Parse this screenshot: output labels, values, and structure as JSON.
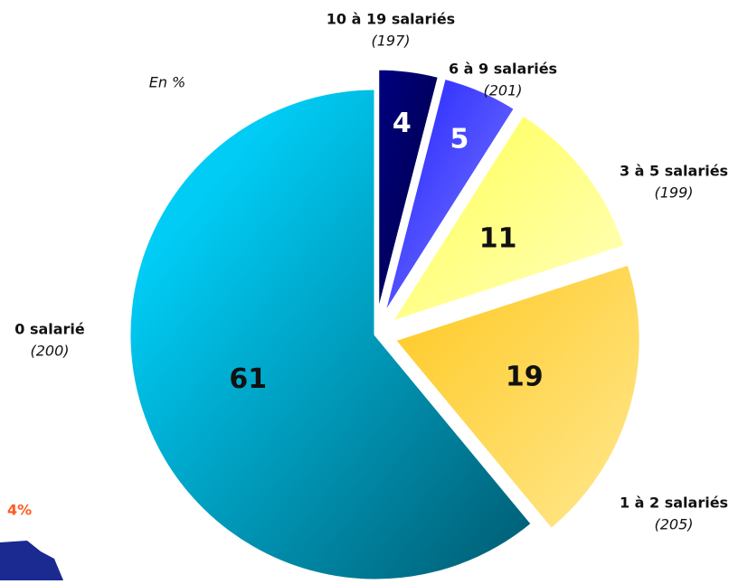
{
  "chart_data": {
    "type": "pie",
    "subtitle": "En %",
    "categories": [
      "10 à 19 salariés",
      "6 à 9 salariés",
      "3 à 5 salariés",
      "1 à 2 salariés",
      "0 salarié"
    ],
    "values": [
      4,
      5,
      11,
      19,
      61
    ],
    "sample_labels": [
      "(197)",
      "(201)",
      "(199)",
      "(205)",
      "(200)"
    ],
    "colors": [
      "#000066",
      "#3a3aff",
      "#ffff70",
      "#ffd43a",
      "#00b8e0"
    ],
    "annotation": "4%"
  }
}
